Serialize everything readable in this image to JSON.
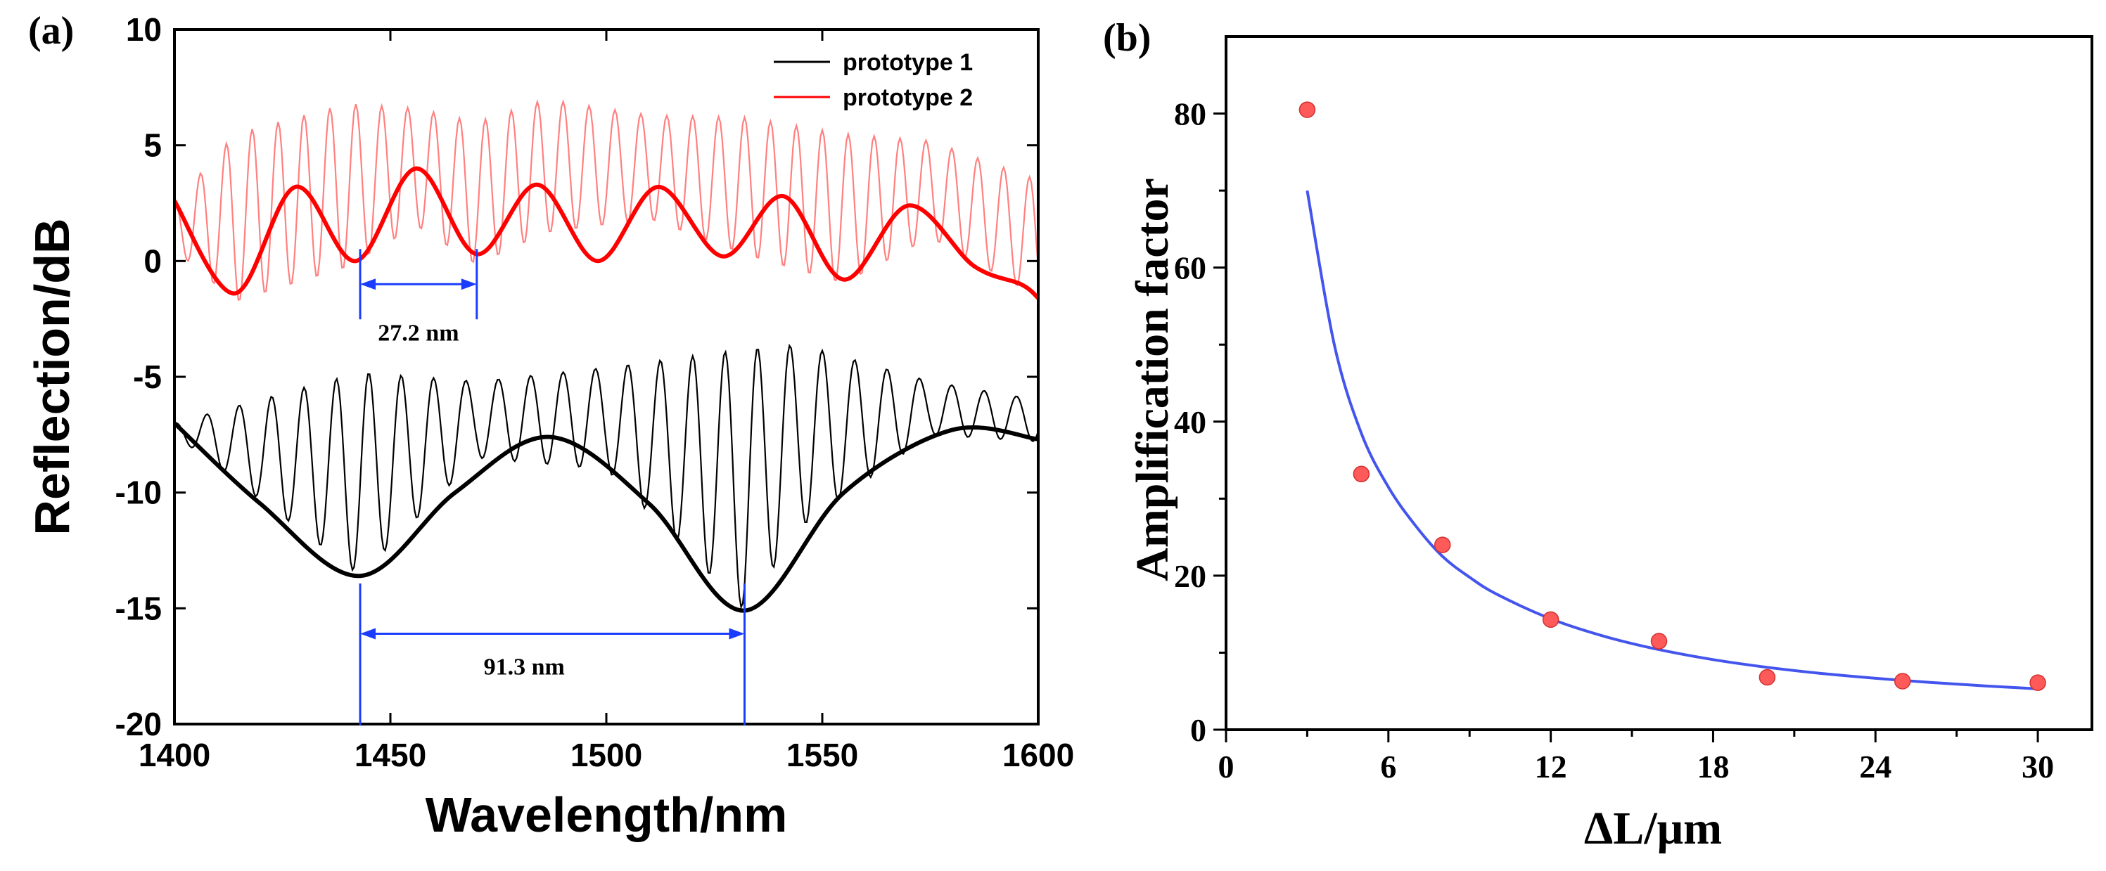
{
  "chart_data": [
    {
      "panel": "(a)",
      "type": "line",
      "xlabel": "Wavelength/nm",
      "ylabel": "Reflection/dB",
      "xlim": [
        1400,
        1600
      ],
      "ylim": [
        -20,
        10
      ],
      "xticks": [
        1400,
        1450,
        1500,
        1550,
        1600
      ],
      "yticks": [
        -20,
        -15,
        -10,
        -5,
        0,
        5,
        10
      ],
      "legend": {
        "location": "top-right",
        "entries": [
          {
            "name": "prototype 1",
            "color": "#000000"
          },
          {
            "name": "prototype 2",
            "color": "#ff0000"
          }
        ]
      },
      "series": [
        {
          "name": "prototype 2 fringes",
          "color": "#ff8080",
          "style": "thin",
          "envelope_x": [
            1400,
            1414,
            1440,
            1456,
            1470,
            1486,
            1510,
            1533,
            1555,
            1575,
            1600
          ],
          "envelope_max": [
            2.5,
            5.5,
            6.8,
            6.6,
            6.0,
            7.0,
            6.3,
            6.2,
            5.5,
            5.2,
            3.5
          ],
          "envelope_min": [
            0.5,
            -1.8,
            -0.3,
            1.5,
            -0.2,
            1.2,
            1.8,
            0.2,
            -1.0,
            1.0,
            -1.6
          ],
          "fringe_period_nm": 6.0
        },
        {
          "name": "prototype 2 envelope",
          "color": "#ff0000",
          "style": "thick",
          "x": [
            1400,
            1414,
            1428,
            1442,
            1456,
            1470,
            1484,
            1498,
            1512,
            1527,
            1541,
            1555,
            1570,
            1585,
            1596,
            1600
          ],
          "y": [
            2.6,
            -1.4,
            3.2,
            0.0,
            4.0,
            0.3,
            3.3,
            0.0,
            3.2,
            0.2,
            2.8,
            -0.8,
            2.4,
            -0.2,
            -1.0,
            -1.6
          ]
        },
        {
          "name": "prototype 1 fringes",
          "color": "#000000",
          "style": "thin",
          "envelope_x": [
            1400,
            1443,
            1470,
            1500,
            1532,
            1545,
            1575,
            1600
          ],
          "envelope_max": [
            -7.0,
            -4.8,
            -5.2,
            -4.6,
            -3.8,
            -3.6,
            -5.2,
            -6.0
          ],
          "envelope_min": [
            -7.5,
            -13.6,
            -8.5,
            -9.0,
            -15.1,
            -11.5,
            -7.5,
            -7.8
          ],
          "fringe_period_nm": 7.5
        },
        {
          "name": "prototype 1 envelope",
          "color": "#000000",
          "style": "thick",
          "x": [
            1400,
            1420,
            1443,
            1465,
            1487,
            1510,
            1532,
            1555,
            1580,
            1600
          ],
          "y": [
            -7.0,
            -10.5,
            -13.6,
            -10.0,
            -7.6,
            -10.5,
            -15.1,
            -10.0,
            -7.3,
            -7.7
          ]
        }
      ],
      "annotations": [
        {
          "text": "27.2 nm",
          "x_start": 1443,
          "x_end": 1470,
          "y": -1.0
        },
        {
          "text": "91.3 nm",
          "x_start": 1443,
          "x_end": 1532,
          "y": -16.1
        }
      ]
    },
    {
      "panel": "(b)",
      "type": "scatter",
      "xlabel": "ΔL/μm",
      "ylabel": "Amplification factor",
      "xlim": [
        0,
        32
      ],
      "ylim": [
        0,
        90
      ],
      "xticks": [
        0,
        6,
        12,
        18,
        24,
        30
      ],
      "yticks": [
        0,
        20,
        40,
        60,
        80
      ],
      "series": [
        {
          "name": "measured",
          "kind": "scatter",
          "color": "#ff5a5a",
          "x": [
            3,
            5,
            8,
            12,
            16,
            20,
            25,
            30
          ],
          "y": [
            80.5,
            33.2,
            24.0,
            14.3,
            11.5,
            6.8,
            6.3,
            6.1
          ]
        },
        {
          "name": "fit",
          "kind": "line",
          "color": "#4455ee",
          "x": [
            3,
            4,
            5,
            6,
            7,
            8,
            9,
            10,
            12,
            14,
            16,
            18,
            20,
            22,
            25,
            28,
            30
          ],
          "y": [
            70.0,
            50.0,
            38.5,
            31.5,
            26.5,
            22.5,
            19.8,
            17.6,
            14.4,
            12.1,
            10.4,
            9.1,
            8.1,
            7.3,
            6.4,
            5.7,
            5.3
          ]
        }
      ]
    }
  ]
}
